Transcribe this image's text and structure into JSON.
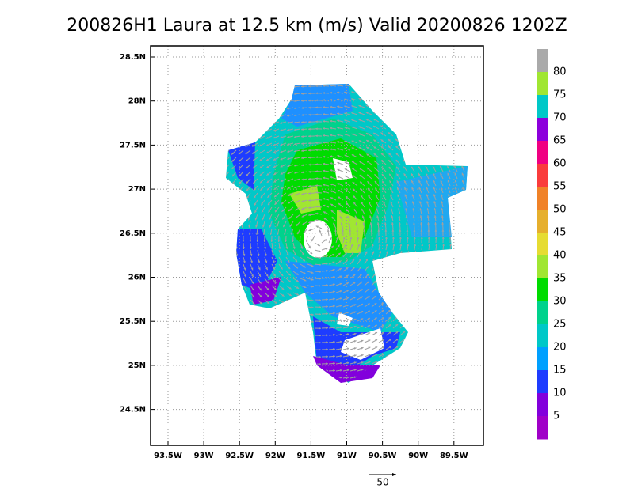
{
  "title": "200826H1 Laura at 12.5 km (m/s) Valid 20200826 1202Z",
  "lon_ticks": [
    "93.5W",
    "93W",
    "92.5W",
    "92W",
    "91.5W",
    "91W",
    "90.5W",
    "90W",
    "89.5W"
  ],
  "lat_ticks": [
    "28.5N",
    "28N",
    "27.5N",
    "27N",
    "26.5N",
    "26N",
    "25.5N",
    "25N",
    "24.5N"
  ],
  "colorbar": {
    "labels": [
      80,
      75,
      70,
      65,
      60,
      55,
      50,
      45,
      40,
      35,
      30,
      25,
      20,
      15,
      10,
      5
    ],
    "colors": [
      "#aaaaaa",
      "#a0e632",
      "#00c8c8",
      "#8c00dc",
      "#f00082",
      "#fa3c3c",
      "#f08228",
      "#e6af2d",
      "#e6dc32",
      "#a0e632",
      "#00dc00",
      "#00d28c",
      "#00c8c8",
      "#00a0ff",
      "#1e3cff",
      "#8200dc",
      "#a000c8"
    ]
  },
  "vector_scale": {
    "label": "50"
  }
}
